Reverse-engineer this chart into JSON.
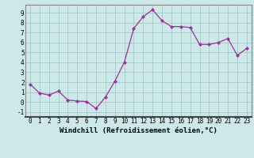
{
  "x": [
    0,
    1,
    2,
    3,
    4,
    5,
    6,
    7,
    8,
    9,
    10,
    11,
    12,
    13,
    14,
    15,
    16,
    17,
    18,
    19,
    20,
    21,
    22,
    23
  ],
  "y": [
    1.8,
    0.9,
    0.7,
    1.1,
    0.2,
    0.1,
    0.05,
    -0.65,
    0.5,
    2.1,
    4.0,
    7.4,
    8.6,
    9.3,
    8.2,
    7.6,
    7.6,
    7.5,
    5.8,
    5.8,
    6.0,
    6.4,
    4.7,
    5.4
  ],
  "line_color": "#993399",
  "marker": "D",
  "marker_size": 2.0,
  "bg_color": "#cce8e8",
  "grid_color": "#aacccc",
  "xlabel": "Windchill (Refroidissement éolien,°C)",
  "xlim": [
    -0.5,
    23.5
  ],
  "ylim": [
    -1.5,
    9.8
  ],
  "yticks": [
    -1,
    0,
    1,
    2,
    3,
    4,
    5,
    6,
    7,
    8,
    9
  ],
  "xticks": [
    0,
    1,
    2,
    3,
    4,
    5,
    6,
    7,
    8,
    9,
    10,
    11,
    12,
    13,
    14,
    15,
    16,
    17,
    18,
    19,
    20,
    21,
    22,
    23
  ],
  "tick_fontsize": 5.5,
  "xlabel_fontsize": 6.5
}
